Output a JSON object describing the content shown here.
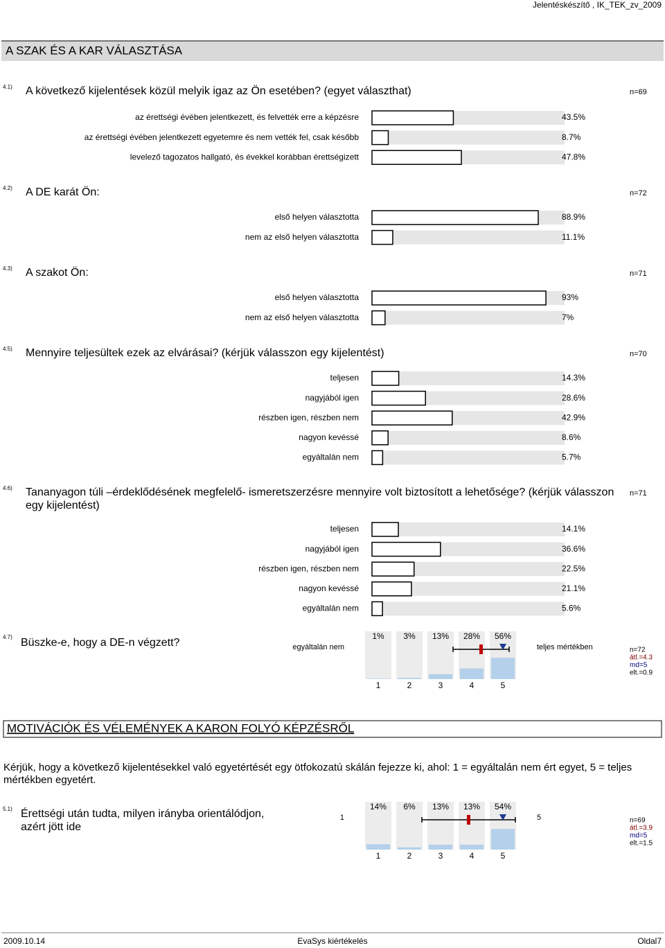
{
  "header": {
    "title": "Jelentéskészítő , IK_TEK_zv_2009"
  },
  "sections": [
    {
      "title": "A SZAK ÉS A KAR VÁLASZTÁSA",
      "questions": [
        {
          "number": "4.1)",
          "text": "A következő kijelentések közül melyik igaz az Ön esetében? (egyet választhat)",
          "n": "n=69",
          "items": [
            {
              "label": "az érettségi évében jelentkezett, és felvették erre a képzésre",
              "value": 43.5,
              "value_label": "43.5%"
            },
            {
              "label": "az érettségi évében jelentkezett egyetemre és nem vették fel, csak később",
              "value": 8.7,
              "value_label": "8.7%"
            },
            {
              "label": "levelező tagozatos hallgató, és évekkel korábban érettségizett",
              "value": 47.8,
              "value_label": "47.8%"
            }
          ]
        },
        {
          "number": "4.2)",
          "text": "A DE karát Ön:",
          "n": "n=72",
          "items": [
            {
              "label": "első helyen választotta",
              "value": 88.9,
              "value_label": "88.9%"
            },
            {
              "label": "nem az első helyen választotta",
              "value": 11.1,
              "value_label": "11.1%"
            }
          ]
        },
        {
          "number": "4.3)",
          "text": "A szakot Ön:",
          "n": "n=71",
          "items": [
            {
              "label": "első helyen választotta",
              "value": 93,
              "value_label": "93%"
            },
            {
              "label": "nem az első helyen választotta",
              "value": 7,
              "value_label": "7%"
            }
          ]
        },
        {
          "number": "4.5)",
          "text": "Mennyire teljesültek ezek az elvárásai? (kérjük válasszon egy kijelentést)",
          "n": "n=70",
          "items": [
            {
              "label": "teljesen",
              "value": 14.3,
              "value_label": "14.3%"
            },
            {
              "label": "nagyjából igen",
              "value": 28.6,
              "value_label": "28.6%"
            },
            {
              "label": "részben igen, részben nem",
              "value": 42.9,
              "value_label": "42.9%"
            },
            {
              "label": "nagyon kevéssé",
              "value": 8.6,
              "value_label": "8.6%"
            },
            {
              "label": "egyáltalán nem",
              "value": 5.7,
              "value_label": "5.7%"
            }
          ]
        },
        {
          "number": "4.6)",
          "text": "Tananyagon túli –érdeklődésének megfelelő- ismeretszerzésre mennyire volt biztosított a lehetősége? (kérjük válasszon egy kijelentést)",
          "n": "n=71",
          "items": [
            {
              "label": "teljesen",
              "value": 14.1,
              "value_label": "14.1%"
            },
            {
              "label": "nagyjából igen",
              "value": 36.6,
              "value_label": "36.6%"
            },
            {
              "label": "részben igen, részben nem",
              "value": 22.5,
              "value_label": "22.5%"
            },
            {
              "label": "nagyon kevéssé",
              "value": 21.1,
              "value_label": "21.1%"
            },
            {
              "label": "egyáltalán nem",
              "value": 5.6,
              "value_label": "5.6%"
            }
          ]
        },
        {
          "number": "4.7)",
          "text": "Büszke-e, hogy a DE-n végzett?",
          "scale": {
            "left_label": "egyáltalán nem",
            "right_label": "teljes mértékben",
            "points": [
              1,
              2,
              3,
              4,
              5
            ],
            "values": [
              1,
              3,
              13,
              28,
              56
            ],
            "value_labels": [
              "1%",
              "3%",
              "13%",
              "28%",
              "56%"
            ],
            "n": "n=72",
            "mean": 4.3,
            "mean_label": "átl.=4.3",
            "median": 5,
            "median_label": "md=5",
            "sd": 0.9,
            "sd_label": "elt.=0.9"
          }
        }
      ]
    },
    {
      "title": "MOTIVÁCIÓK ÉS VÉLEMÉNYEK A KARON FOLYÓ KÉPZÉSRŐL",
      "intro": "Kérjük, hogy a következő kijelentésekkel való egyetértését egy ötfokozatú skálán fejezze ki, ahol: 1 = egyáltalán nem ért egyet, 5 = teljes mértékben egyetért.",
      "questions": [
        {
          "number": "5.1)",
          "text": "Érettségi után tudta, milyen irányba orientálódjon, azért jött ide",
          "scale": {
            "left_label": "1",
            "right_label": "5",
            "points": [
              1,
              2,
              3,
              4,
              5
            ],
            "values": [
              14,
              6,
              13,
              13,
              54
            ],
            "value_labels": [
              "14%",
              "6%",
              "13%",
              "13%",
              "54%"
            ],
            "n": "n=69",
            "mean": 3.9,
            "mean_label": "átl.=3.9",
            "median": 5,
            "median_label": "md=5",
            "sd": 1.5,
            "sd_label": "elt.=1.5"
          }
        }
      ]
    }
  ],
  "footer": {
    "date": "2009.10.14",
    "center": "EvaSys kiértékelés",
    "page": "Oldal7"
  }
}
